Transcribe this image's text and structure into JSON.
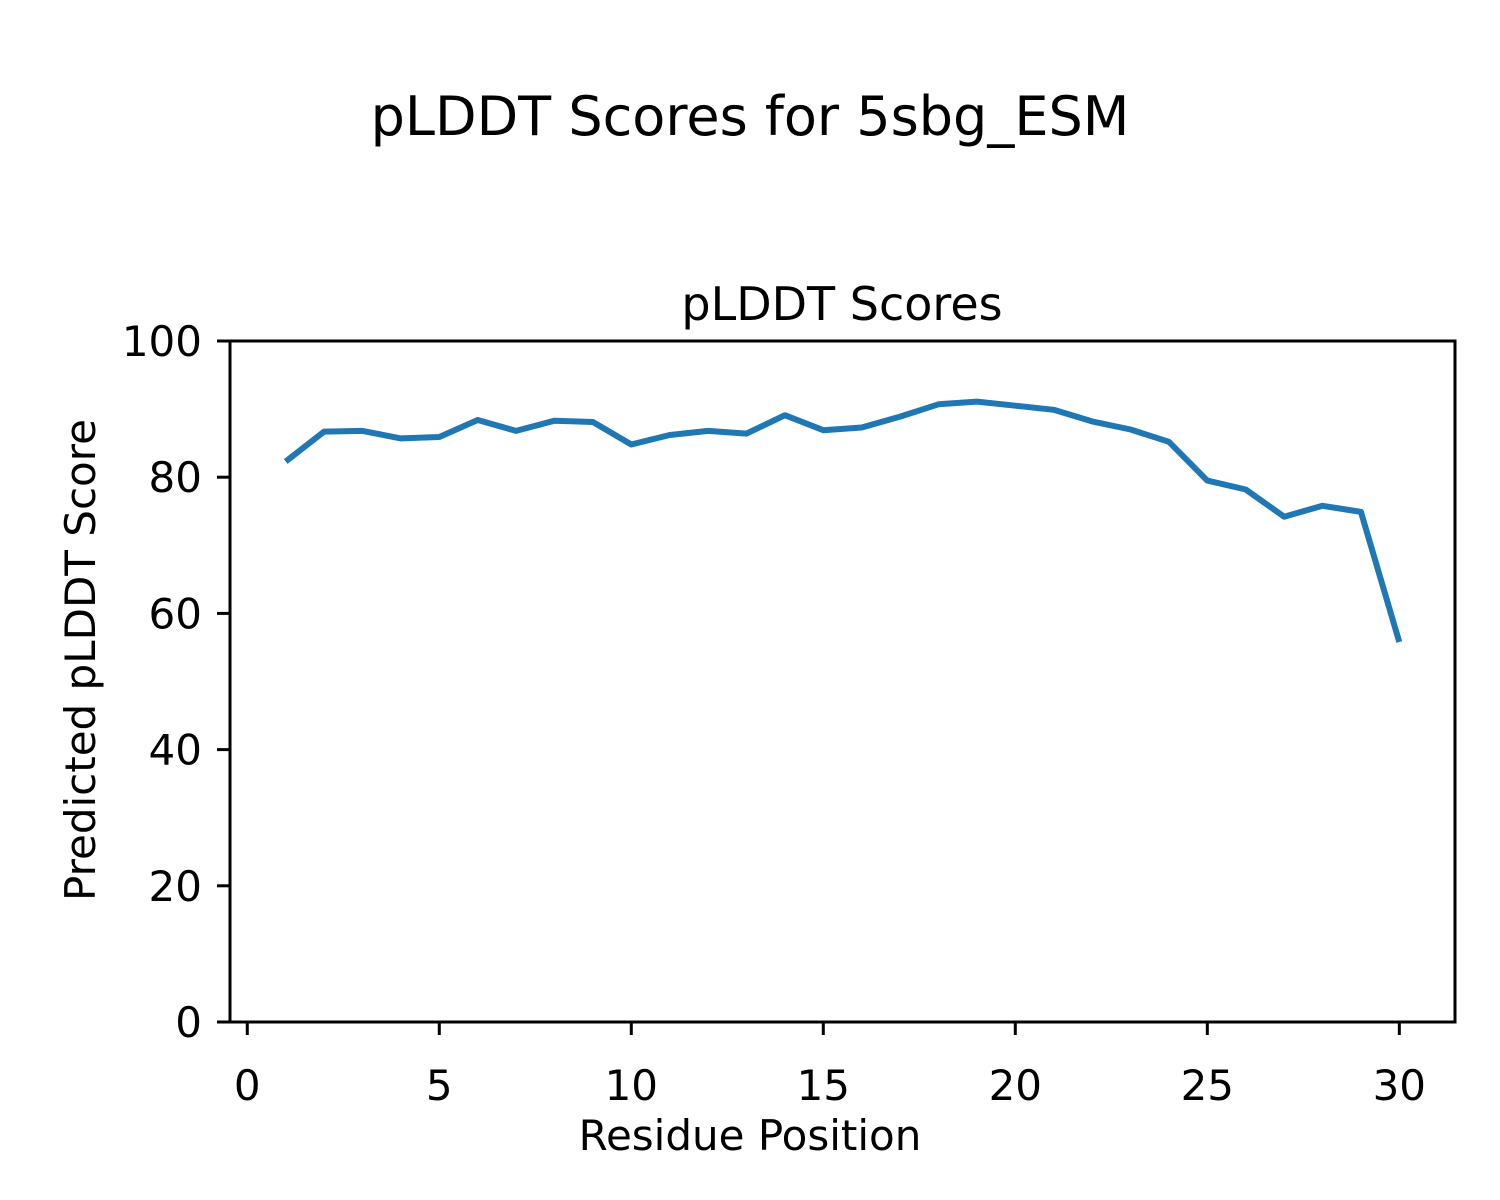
{
  "figure": {
    "suptitle": "pLDDT Scores for 5sbg_ESM",
    "background_color": "#ffffff"
  },
  "chart_data": {
    "type": "line",
    "title": "pLDDT Scores",
    "xlabel": "Residue Position",
    "ylabel": "Predicted pLDDT Score",
    "x": [
      1,
      2,
      3,
      4,
      5,
      6,
      7,
      8,
      9,
      10,
      11,
      12,
      13,
      14,
      15,
      16,
      17,
      18,
      19,
      20,
      21,
      22,
      23,
      24,
      25,
      26,
      27,
      28,
      29,
      30
    ],
    "series": [
      {
        "name": "pLDDT",
        "values": [
          82.3,
          86.7,
          86.8,
          85.7,
          85.9,
          88.4,
          86.8,
          88.3,
          88.1,
          84.8,
          86.2,
          86.8,
          86.4,
          89.1,
          86.9,
          87.3,
          88.9,
          90.7,
          91.1,
          90.5,
          89.9,
          88.2,
          87.0,
          85.2,
          79.5,
          78.2,
          74.2,
          75.8,
          74.9,
          55.8
        ]
      }
    ],
    "xlim": [
      -0.45,
      31.45
    ],
    "ylim": [
      0,
      100
    ],
    "xticks": [
      0,
      5,
      10,
      15,
      20,
      25,
      30
    ],
    "yticks": [
      0,
      20,
      40,
      60,
      80,
      100
    ],
    "grid": false,
    "legend": "none",
    "line_color": "#1f77b4",
    "axis_color": "#000000"
  }
}
